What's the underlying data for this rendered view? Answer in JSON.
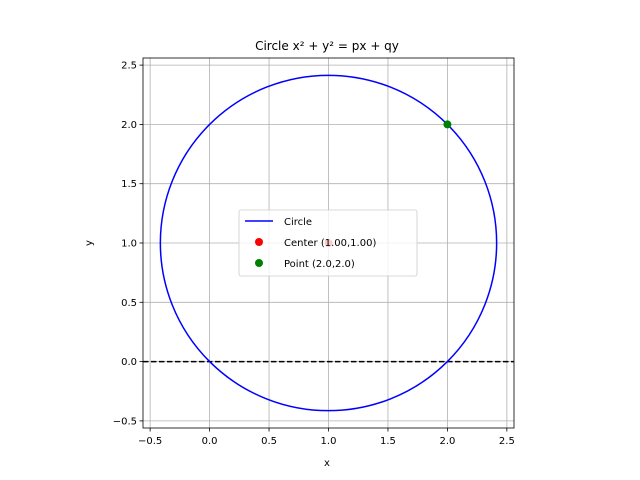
{
  "chart_data": {
    "type": "line",
    "title": "Circle x² + y² = px + qy",
    "xlabel": "x",
    "ylabel": "y",
    "xlim": [
      -0.56,
      2.56
    ],
    "ylim": [
      -0.56,
      2.56
    ],
    "xticks": [
      -0.5,
      0.0,
      0.5,
      1.0,
      1.5,
      2.0,
      2.5
    ],
    "yticks": [
      -0.5,
      0.0,
      0.5,
      1.0,
      1.5,
      2.0,
      2.5
    ],
    "xtick_labels": [
      "−0.5",
      "0.0",
      "0.5",
      "1.0",
      "1.5",
      "2.0",
      "2.5"
    ],
    "ytick_labels": [
      "−0.5",
      "0.0",
      "0.5",
      "1.0",
      "1.5",
      "2.0",
      "2.5"
    ],
    "grid": true,
    "legend_position": "center",
    "circle": {
      "name": "Circle",
      "center_x": 1.0,
      "center_y": 1.0,
      "radius": 1.414,
      "color": "#0000ff"
    },
    "reference_line": {
      "y": 0.0,
      "style": "dashed",
      "color": "#000000"
    },
    "points": [
      {
        "name": "Center (1.00,1.00)",
        "x": 1.0,
        "y": 1.0,
        "color": "#ff0000"
      },
      {
        "name": "Point (2.0,2.0)",
        "x": 2.0,
        "y": 2.0,
        "color": "#008000"
      }
    ]
  }
}
